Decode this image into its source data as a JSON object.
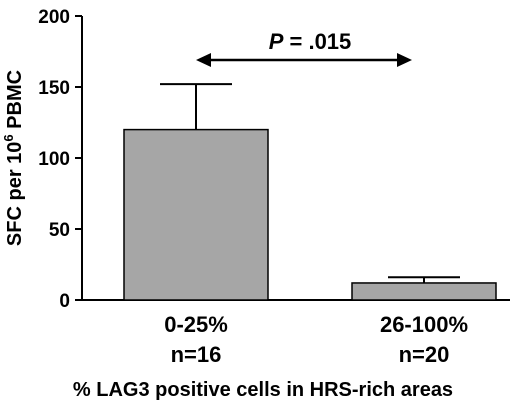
{
  "chart_data": {
    "type": "bar",
    "categories": [
      "0-25%",
      "26-100%"
    ],
    "category_counts": [
      "n=16",
      "n=20"
    ],
    "values": [
      120,
      12
    ],
    "error_upper": [
      152,
      16
    ],
    "ylim": [
      0,
      200
    ],
    "yticks": [
      0,
      50,
      100,
      150,
      200
    ],
    "ylabel_main": "SFC per 10",
    "ylabel_superscript": "6",
    "ylabel_tail": " PBMC",
    "xlabel": "% LAG3 positive cells in HRS-rich areas",
    "annotation": {
      "p_symbol": "P",
      "p_text": " = .015"
    },
    "bar_color": "#a6a6a6",
    "grid": false,
    "legend": "none"
  }
}
